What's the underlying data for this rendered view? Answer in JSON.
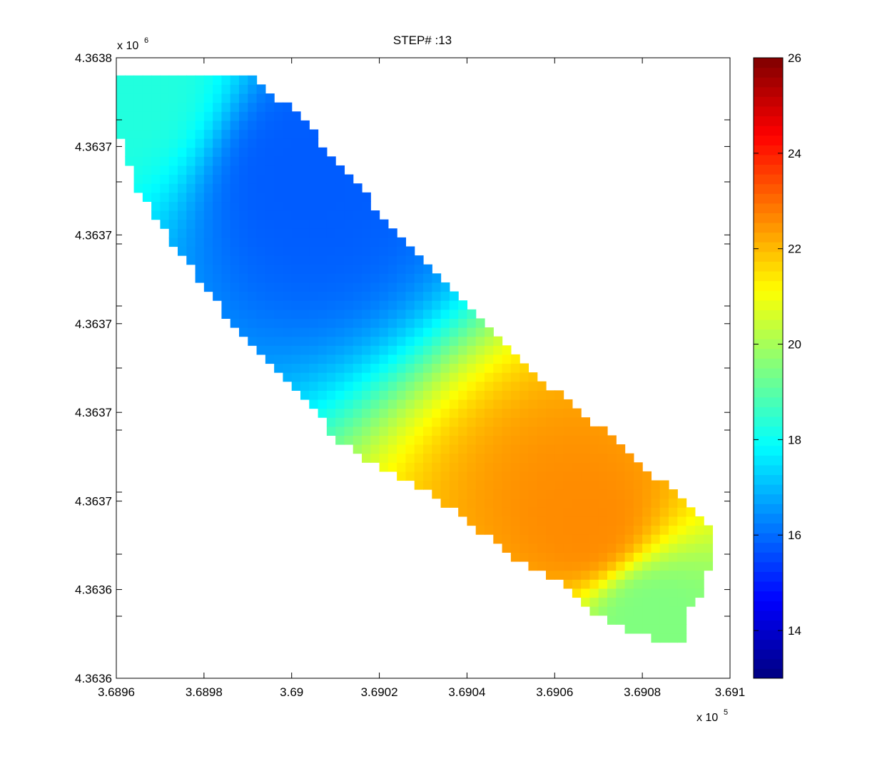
{
  "chart_data": {
    "type": "heatmap",
    "title": "STEP# :13",
    "xlabel": "",
    "ylabel": "",
    "x_exponent_label": "x 10",
    "x_exponent": "5",
    "y_exponent_label": "x 10",
    "y_exponent": "6",
    "xlim": [
      368960,
      369100
    ],
    "ylim": [
      4363600,
      4363800
    ],
    "x_ticks": [
      368960,
      368980,
      369000,
      369020,
      369040,
      369060,
      369080,
      369100
    ],
    "x_tick_labels": [
      "3.6896",
      "3.6898",
      "3.69",
      "3.6902",
      "3.6904",
      "3.6906",
      "3.6908",
      "3.691"
    ],
    "y_ticks": [
      4363600,
      4363620,
      4363640,
      4363660,
      4363680,
      4363700,
      4363720,
      4363740,
      4363760,
      4363780,
      4363800
    ],
    "y_tick_labels": [
      "4.3636",
      "",
      "4.3636",
      "",
      "4.3637",
      "",
      "4.3637",
      "",
      "4.3637",
      "",
      "4.3638"
    ],
    "y_tick_label_strings": [
      "4.3636",
      "4.3636",
      "4.3637",
      "4.3637",
      "4.3637",
      "4.3637",
      "4.3637",
      "4.3638"
    ],
    "colormap": "jet",
    "clim": [
      13,
      26
    ],
    "colorbar_ticks": [
      14,
      16,
      18,
      20,
      22,
      24,
      26
    ],
    "colorbar_tick_labels": [
      "14",
      "16",
      "18",
      "20",
      "22",
      "24",
      "26"
    ],
    "grid": false,
    "domain_outline": [
      [
        368961,
        4363794
      ],
      [
        368991,
        4363794
      ],
      [
        369001,
        4363782
      ],
      [
        369011,
        4363766
      ],
      [
        369021,
        4363748
      ],
      [
        369031,
        4363733
      ],
      [
        369041,
        4363719
      ],
      [
        369051,
        4363703
      ],
      [
        369061,
        4363692
      ],
      [
        369071,
        4363680
      ],
      [
        369083,
        4363665
      ],
      [
        369093,
        4363652
      ],
      [
        369096,
        4363649
      ],
      [
        369096,
        4363638
      ],
      [
        369093,
        4363626
      ],
      [
        369090,
        4363620
      ],
      [
        369089,
        4363612
      ],
      [
        369083,
        4363612
      ],
      [
        369076,
        4363616
      ],
      [
        369068,
        4363622
      ],
      [
        369061,
        4363631
      ],
      [
        369051,
        4363639
      ],
      [
        369041,
        4363650
      ],
      [
        369031,
        4363660
      ],
      [
        369021,
        4363667
      ],
      [
        369011,
        4363676
      ],
      [
        369001,
        4363693
      ],
      [
        368994,
        4363702
      ],
      [
        368981,
        4363724
      ],
      [
        368973,
        4363740
      ],
      [
        368965,
        4363757
      ],
      [
        368961,
        4363774
      ]
    ],
    "field_extrema": [
      {
        "kind": "min",
        "x": 369003,
        "y": 4363762,
        "value": 15.8
      },
      {
        "kind": "max",
        "x": 369067,
        "y": 4363650,
        "value": 22.6
      },
      {
        "kind": "local-min",
        "x": 369082,
        "y": 4363618,
        "value": 19.5
      },
      {
        "kind": "corner",
        "x": 368963,
        "y": 4363791,
        "value": 18.3
      }
    ],
    "palette": {
      "jet": [
        "#00008f",
        "#0000ff",
        "#0080ff",
        "#00ffff",
        "#80ff80",
        "#ffff00",
        "#ff8000",
        "#ff0000",
        "#800000"
      ]
    }
  }
}
